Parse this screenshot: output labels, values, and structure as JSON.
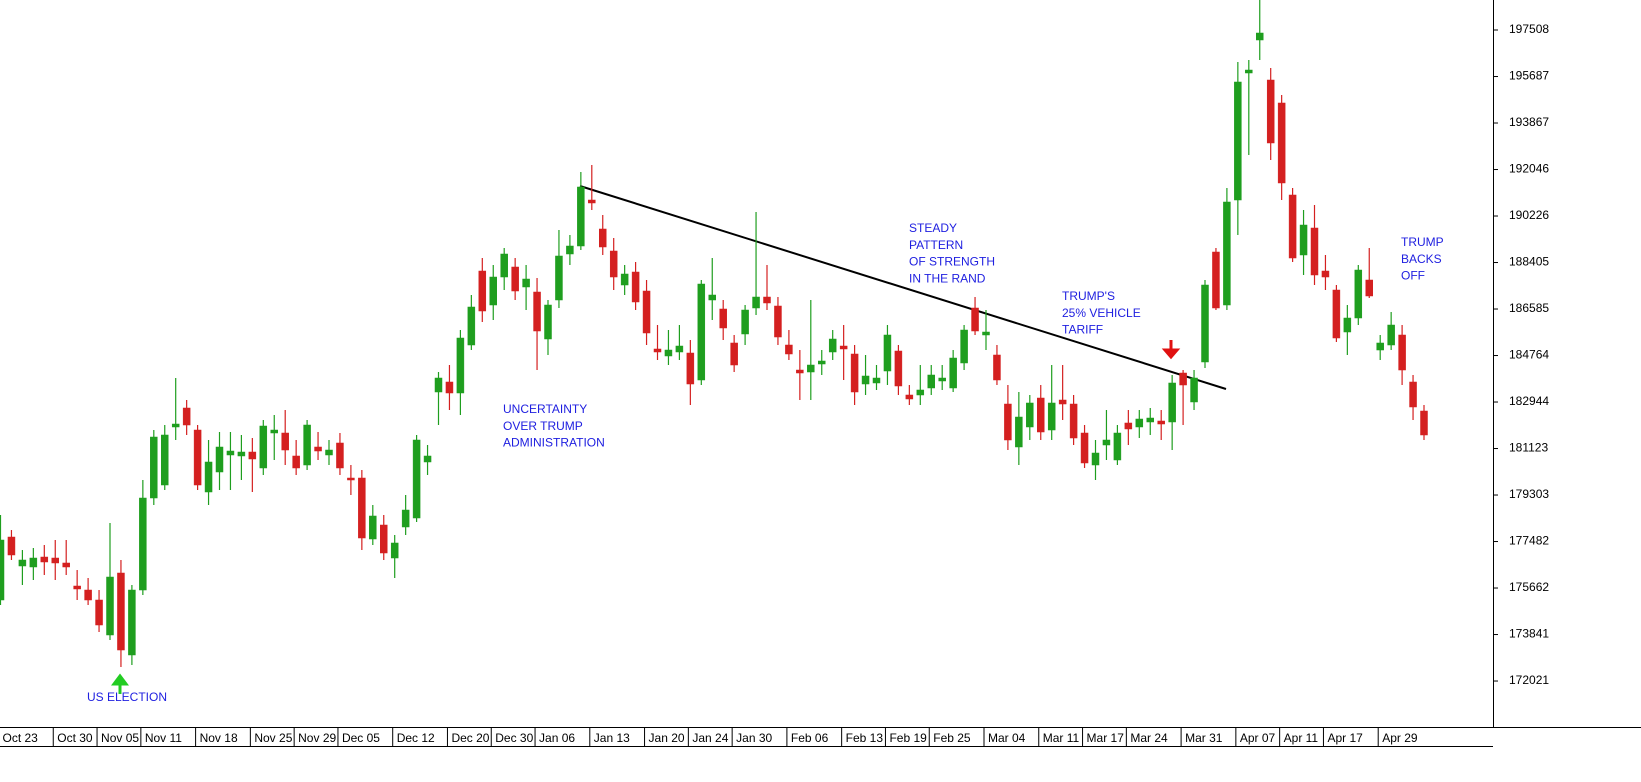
{
  "chart_data": {
    "type": "candlestick",
    "up_color": "#1f9e1f",
    "down_color": "#d42020",
    "ylim": [
      170221,
      198683
    ],
    "yticks": [
      172021,
      173841,
      175662,
      177482,
      179303,
      181123,
      182944,
      184764,
      186585,
      188405,
      190226,
      192046,
      193867,
      195687,
      197508
    ],
    "categories": [
      "Oct 23",
      null,
      null,
      null,
      null,
      "Oct 30",
      null,
      null,
      null,
      "Nov 05",
      null,
      null,
      null,
      "Nov 11",
      null,
      null,
      null,
      null,
      "Nov 18",
      null,
      null,
      null,
      null,
      "Nov 25",
      null,
      null,
      null,
      "Nov 29",
      null,
      null,
      null,
      "Dec 05",
      null,
      null,
      null,
      null,
      "Dec 12",
      null,
      null,
      null,
      null,
      "Dec 20",
      null,
      null,
      null,
      "Dec 30",
      null,
      null,
      null,
      "Jan 06",
      null,
      null,
      null,
      null,
      "Jan 13",
      null,
      null,
      null,
      null,
      "Jan 20",
      null,
      null,
      null,
      "Jan 24",
      null,
      null,
      null,
      "Jan 30",
      null,
      null,
      null,
      null,
      "Feb 06",
      null,
      null,
      null,
      null,
      "Feb 13",
      null,
      null,
      null,
      "Feb 19",
      null,
      null,
      null,
      "Feb 25",
      null,
      null,
      null,
      null,
      "Mar 04",
      null,
      null,
      null,
      null,
      "Mar 11",
      null,
      null,
      null,
      "Mar 17",
      null,
      null,
      null,
      "Mar 24",
      null,
      null,
      null,
      null,
      "Mar 31",
      null,
      null,
      null,
      null,
      "Apr 07",
      null,
      null,
      null,
      "Apr 11",
      null,
      null,
      null,
      "Apr 17",
      null,
      null,
      null,
      null,
      "Apr 29",
      null,
      null,
      null,
      null
    ],
    "open": [
      175193,
      177659,
      176524,
      176485,
      176876,
      176837,
      176642,
      175741,
      175584,
      175193,
      173823,
      176250,
      173040,
      175584,
      179186,
      179695,
      181966,
      182710,
      181848,
      179421,
      180204,
      180870,
      180831,
      180987,
      180361,
      181731,
      181731,
      180831,
      180478,
      181183,
      180870,
      181340,
      179969,
      179969,
      177581,
      178129,
      176837,
      178051,
      178403,
      180596,
      183336,
      183728,
      183297,
      185176,
      188073,
      186742,
      187838,
      188230,
      187447,
      187251,
      185411,
      186938,
      188739,
      189052,
      190853,
      189718,
      188856,
      187525,
      188034,
      187290,
      185020,
      184746,
      184902,
      184863,
      183806,
      186938,
      186586,
      185255,
      185607,
      186625,
      187055,
      186703,
      185176,
      184197,
      184119,
      184432,
      184902,
      185137,
      184824,
      183649,
      183689,
      184158,
      184941,
      183219,
      183219,
      183493,
      183767,
      183493,
      184472,
      186625,
      185568,
      184785,
      182866,
      181183,
      181966,
      183101,
      181848,
      183023,
      182866,
      181731,
      180478,
      181261,
      180674,
      182123,
      181966,
      182162,
      182201,
      182162,
      184080,
      182945,
      184511,
      188817,
      186742,
      190853,
      195825,
      197117,
      195551,
      194651,
      191049,
      188700,
      189757,
      188073,
      187329,
      185685,
      186233,
      187721,
      184980,
      185176,
      185568,
      183728,
      182592
    ],
    "high": [
      178521,
      177933,
      177150,
      177229,
      177346,
      177542,
      177542,
      176367,
      176054,
      175584,
      178208,
      176759,
      175780,
      179891,
      181848,
      182044,
      183884,
      183023,
      182044,
      181457,
      181770,
      181770,
      181653,
      181535,
      182240,
      182436,
      182631,
      181457,
      182240,
      181770,
      181457,
      181731,
      180478,
      180282,
      178912,
      178521,
      177738,
      179304,
      181653,
      181261,
      184119,
      184393,
      185763,
      187134,
      188582,
      188308,
      188974,
      188582,
      188308,
      187799,
      186938,
      189678,
      189483,
      191949,
      192223,
      190266,
      189365,
      188308,
      188426,
      187721,
      185959,
      185763,
      185959,
      185372,
      187721,
      188582,
      186938,
      185568,
      186742,
      190383,
      188308,
      187055,
      185763,
      184980,
      186938,
      184980,
      185763,
      185959,
      185176,
      184785,
      184393,
      185959,
      185176,
      183610,
      184393,
      184393,
      184393,
      184980,
      185959,
      187055,
      186546,
      185176,
      183610,
      183336,
      183219,
      183610,
      184393,
      184393,
      183219,
      182044,
      181457,
      182631,
      182044,
      182631,
      182631,
      182710,
      182631,
      184002,
      184197,
      184197,
      187721,
      188974,
      191323,
      196256,
      196334,
      198683,
      196021,
      194964,
      191323,
      190461,
      190657,
      188700,
      187525,
      186742,
      188308,
      188974,
      185568,
      186468,
      185959,
      184002,
      182827
    ],
    "low": [
      174997,
      176759,
      175780,
      175976,
      176172,
      175976,
      176172,
      175193,
      174997,
      173940,
      173627,
      172570,
      172648,
      175389,
      178912,
      179499,
      181457,
      181653,
      179499,
      178912,
      179499,
      179499,
      179891,
      179421,
      180087,
      180674,
      180478,
      180087,
      180282,
      180674,
      180478,
      180087,
      179304,
      177150,
      177346,
      176759,
      176054,
      177738,
      178247,
      180087,
      182044,
      182631,
      182436,
      184980,
      186077,
      186155,
      187329,
      186938,
      186546,
      184197,
      184785,
      186625,
      188308,
      188895,
      190461,
      188700,
      187329,
      187134,
      186546,
      185176,
      184589,
      184393,
      184589,
      182827,
      183610,
      186155,
      185372,
      184119,
      185176,
      186351,
      186546,
      185176,
      184589,
      183023,
      183023,
      184002,
      184589,
      183806,
      182827,
      183219,
      183415,
      183610,
      183219,
      182827,
      182827,
      183219,
      183415,
      183336,
      184197,
      185568,
      184980,
      183610,
      181065,
      180478,
      181457,
      181457,
      181457,
      182240,
      181261,
      180361,
      179891,
      180674,
      180478,
      181261,
      181535,
      181653,
      181457,
      181065,
      182044,
      182631,
      184276,
      186546,
      186546,
      189483,
      192615,
      196334,
      192419,
      190853,
      188426,
      187917,
      187525,
      187329,
      185294,
      184785,
      185959,
      187016,
      184589,
      184980,
      183610,
      182240,
      181457
    ],
    "close": [
      177542,
      176955,
      176759,
      176837,
      176681,
      176642,
      176485,
      175624,
      175193,
      174214,
      176093,
      173235,
      175584,
      179186,
      181574,
      181653,
      182083,
      182044,
      179695,
      180596,
      181183,
      181026,
      180987,
      180713,
      182005,
      181848,
      181065,
      180361,
      182044,
      181026,
      181065,
      180361,
      179891,
      177620,
      178482,
      177033,
      177425,
      178716,
      181457,
      180831,
      183884,
      183297,
      185450,
      186664,
      186507,
      187838,
      188739,
      187290,
      187760,
      185724,
      186742,
      188661,
      189052,
      191362,
      190736,
      189013,
      187838,
      187956,
      186860,
      185646,
      184902,
      184980,
      185137,
      183649,
      187564,
      187134,
      185842,
      184393,
      186546,
      187055,
      186821,
      185489,
      184824,
      184080,
      184393,
      184550,
      185411,
      185020,
      183336,
      183963,
      183884,
      185568,
      183571,
      183062,
      183415,
      184002,
      183884,
      184667,
      185763,
      185724,
      185685,
      183806,
      181457,
      182357,
      182906,
      181770,
      182906,
      182866,
      181535,
      180557,
      180948,
      181457,
      181731,
      181888,
      182279,
      182318,
      182083,
      183689,
      183610,
      183884,
      187525,
      186625,
      190775,
      195473,
      195942,
      197391,
      193085,
      191519,
      188582,
      189874,
      187917,
      187838,
      185450,
      186233,
      188112,
      187095,
      185255,
      185959,
      184197,
      182749,
      181653
    ],
    "annotations": [
      [
        "US ELECTION"
      ],
      [
        "UNCERTAINTY",
        "OVER TRUMP",
        "ADMINISTRATION"
      ],
      [
        "STEADY",
        "PATTERN",
        "OF STRENGTH",
        "IN THE RAND"
      ],
      [
        "TRUMP'S",
        "25% VEHICLE",
        "TARIFF"
      ],
      [
        "TRUMP",
        "BACKS",
        "OFF"
      ]
    ]
  }
}
